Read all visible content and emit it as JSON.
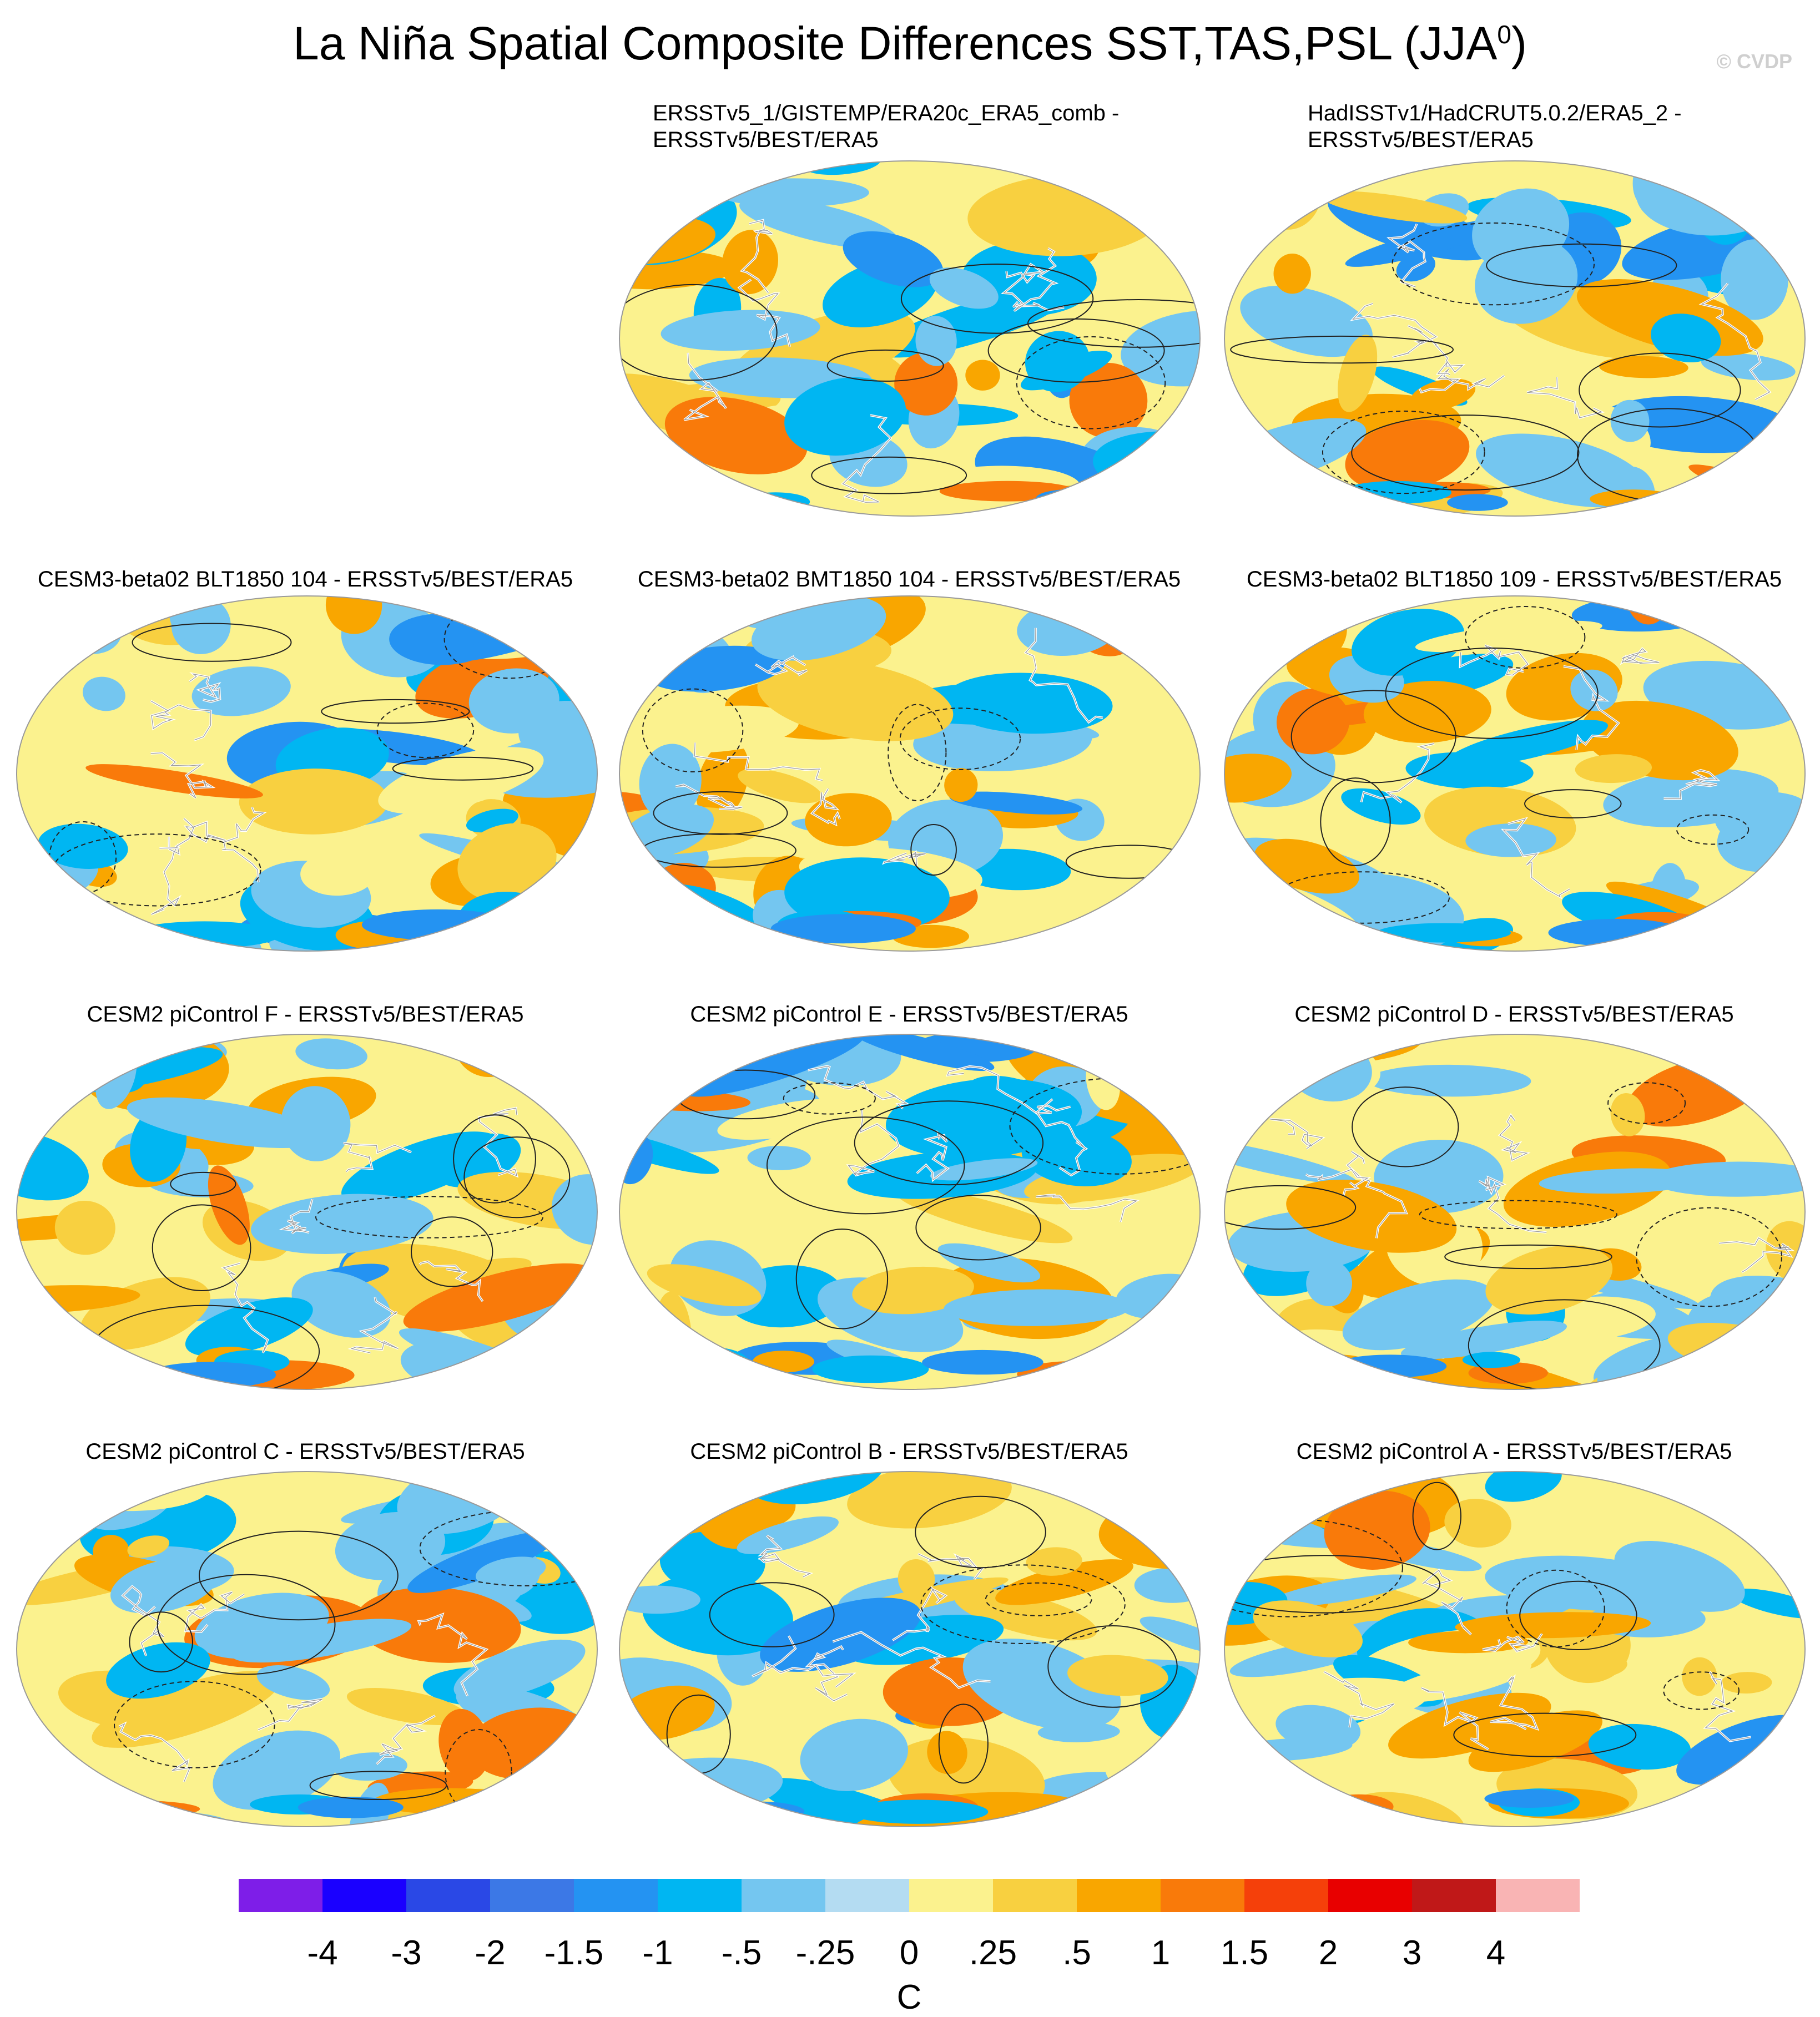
{
  "title": "La Niña Spatial Composite Differences SST,TAS,PSL (JJA",
  "title_sup": "0",
  "title_end": ")",
  "credit": "© CVDP",
  "chart_data": {
    "type": "heatmap",
    "projection": "Robinson-like global map",
    "units": "C",
    "levels": [
      "-4",
      "-3",
      "-2",
      "-1.5",
      "-1",
      "-.5",
      "-.25",
      "0",
      ".25",
      ".5",
      "1",
      "1.5",
      "2",
      "3",
      "4"
    ],
    "colors": [
      "#7e1ee8",
      "#1a00ff",
      "#2a48e6",
      "#3c78e6",
      "#2493f2",
      "#00b6f2",
      "#74c6f0",
      "#b4dcf2",
      "#fbf28e",
      "#f8d040",
      "#f9a600",
      "#f97a0a",
      "#f5400a",
      "#e80000",
      "#c01818",
      "#f9b4b4"
    ],
    "panels": [
      {
        "title_line1": "ERSSTv5_1/GISTEMP/ERA20c_ERA5_comb -",
        "title_line2": "ERSSTv5/BEST/ERA5"
      },
      {
        "title_line1": "HadISSTv1/HadCRUT5.0.2/ERA5_2 -",
        "title_line2": "ERSSTv5/BEST/ERA5"
      },
      {
        "title_line1": "CESM3-beta02 BLT1850 104 - ERSSTv5/BEST/ERA5"
      },
      {
        "title_line1": "CESM3-beta02 BMT1850 104 - ERSSTv5/BEST/ERA5"
      },
      {
        "title_line1": "CESM3-beta02 BLT1850 109 - ERSSTv5/BEST/ERA5"
      },
      {
        "title_line1": "CESM2 piControl F - ERSSTv5/BEST/ERA5"
      },
      {
        "title_line1": "CESM2 piControl E - ERSSTv5/BEST/ERA5"
      },
      {
        "title_line1": "CESM2 piControl D - ERSSTv5/BEST/ERA5"
      },
      {
        "title_line1": "CESM2 piControl C - ERSSTv5/BEST/ERA5"
      },
      {
        "title_line1": "CESM2 piControl B - ERSSTv5/BEST/ERA5"
      },
      {
        "title_line1": "CESM2 piControl A - ERSSTv5/BEST/ERA5"
      }
    ]
  }
}
